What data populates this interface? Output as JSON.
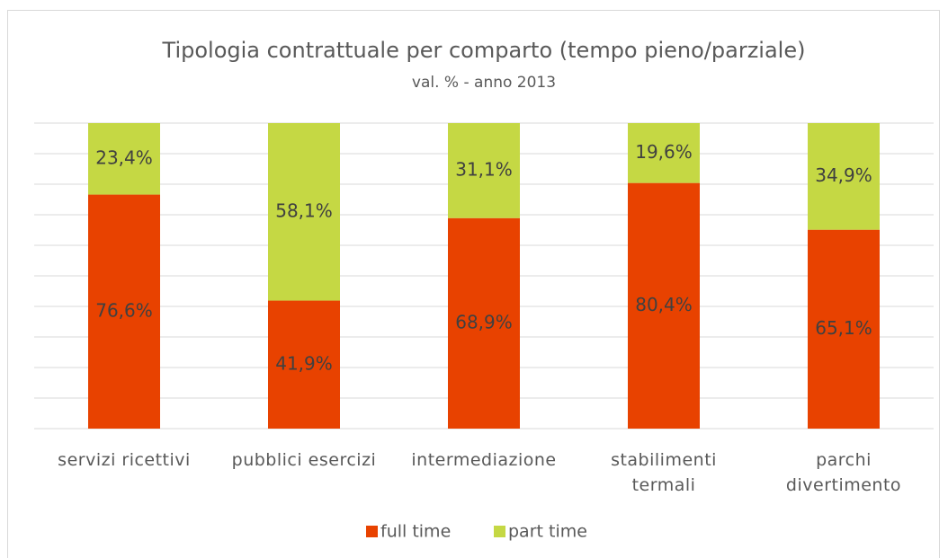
{
  "chart_data": {
    "type": "stacked_bar",
    "title": "Tipologia contrattuale per comparto (tempo pieno/parziale)",
    "subtitle": "val. % - anno 2013",
    "categories": [
      "servizi ricettivi",
      "pubblici esercizi",
      "intermediazione",
      "stabilimenti\ntermali",
      "parchi\ndivertimento"
    ],
    "series": [
      {
        "name": "full time",
        "color": "#e84200",
        "values": [
          76.6,
          41.9,
          68.9,
          80.4,
          65.1
        ],
        "value_labels": [
          "76,6%",
          "41,9%",
          "68,9%",
          "80,4%",
          "65,1%"
        ]
      },
      {
        "name": "part time",
        "color": "#c5d844",
        "values": [
          23.4,
          58.1,
          31.1,
          19.6,
          34.9
        ],
        "value_labels": [
          "23,4%",
          "58,1%",
          "31,1%",
          "19,6%",
          "34,9%"
        ]
      }
    ],
    "ylim": [
      0,
      100
    ],
    "yticks": [
      0,
      10,
      20,
      30,
      40,
      50,
      60,
      70,
      80,
      90,
      100
    ],
    "grid": true,
    "legend": "bottom"
  }
}
